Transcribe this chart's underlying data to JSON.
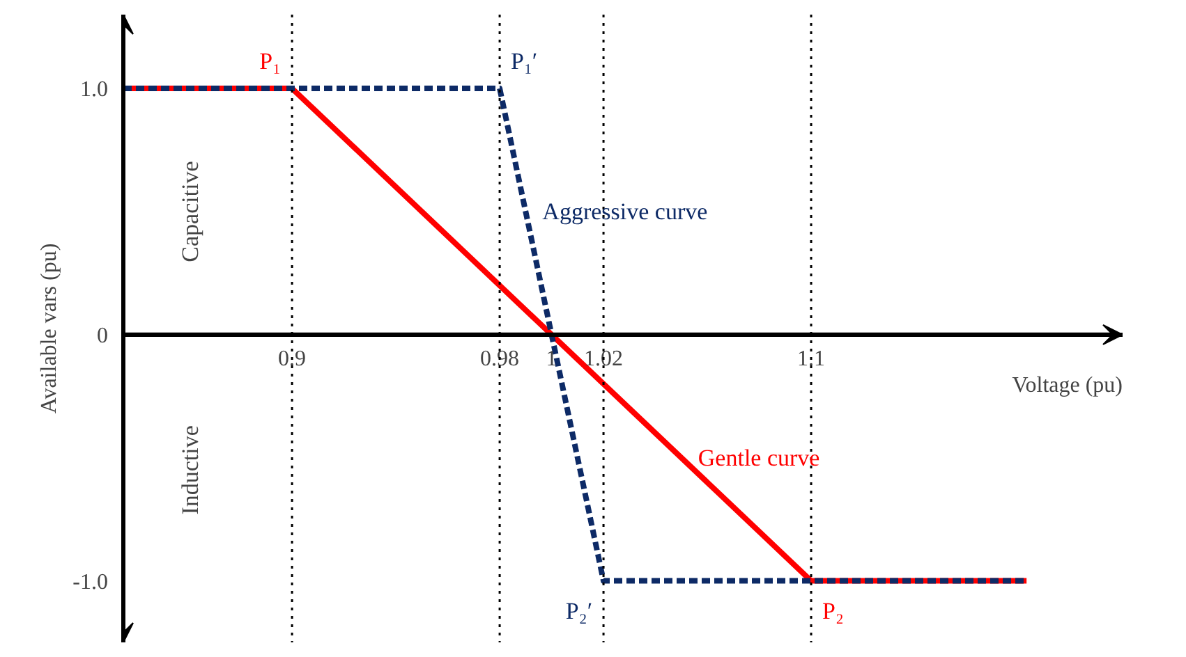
{
  "chart_data": {
    "type": "line",
    "xlabel": "Voltage (pu)",
    "ylabel": "Available vars (pu)",
    "xlim": [
      0.835,
      1.22
    ],
    "ylim": [
      -1.25,
      1.3
    ],
    "xticks": [
      0.9,
      0.98,
      1,
      1.02,
      1.1
    ],
    "yticks": [
      {
        "value": 1,
        "label": "1.0"
      },
      0,
      {
        "value": -1,
        "label": "-1.0"
      }
    ],
    "series": [
      {
        "name": "Gentle curve",
        "color": "#ff0000",
        "line_style": "solid",
        "x": [
          0.835,
          0.9,
          1.1,
          1.183
        ],
        "values": [
          1,
          1,
          -1,
          -1
        ]
      },
      {
        "name": "Aggressive curve",
        "color": "#0d2a66",
        "line_style": "dashed",
        "x": [
          0.835,
          0.98,
          1.02,
          1.183
        ],
        "values": [
          1,
          1,
          -1,
          -1
        ]
      }
    ],
    "ref_lines": [
      {
        "axis": "x",
        "value": 0.9,
        "color": "#000000",
        "line_style": "dotted"
      },
      {
        "axis": "x",
        "value": 0.98,
        "color": "#000000",
        "line_style": "dotted"
      },
      {
        "axis": "x",
        "value": 1.02,
        "color": "#000000",
        "line_style": "dotted"
      },
      {
        "axis": "x",
        "value": 1.1,
        "color": "#000000",
        "line_style": "dotted"
      }
    ],
    "annotations": [
      {
        "text": "P₁",
        "x": 0.9,
        "y": 1
      },
      {
        "text": "P₁′",
        "x": 0.98,
        "y": 1
      },
      {
        "text": "P₂′",
        "x": 1.02,
        "y": -1
      },
      {
        "text": "P₂",
        "x": 1.1,
        "y": -1
      },
      "Capacitive",
      "Inductive"
    ],
    "grid": false,
    "marker": "none"
  }
}
